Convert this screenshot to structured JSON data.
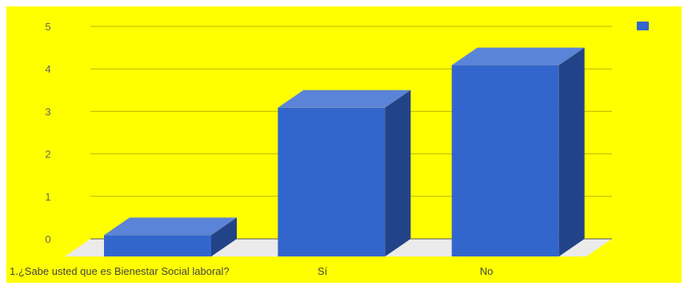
{
  "chart_data": {
    "type": "bar",
    "style": "3d-column",
    "categories": [
      "1.¿Sabe usted que es Bienestar Social laboral?",
      "Sí",
      "No"
    ],
    "series": [
      {
        "values": [
          0.5,
          3.5,
          4.5
        ]
      }
    ],
    "ylim": [
      0,
      5
    ],
    "yticks": [
      "0",
      "1",
      "2",
      "3",
      "4",
      "5"
    ],
    "grid": true,
    "legend": "top-right",
    "colors": {
      "background": "#ffff00",
      "bar_front": "#3366cc",
      "bar_top": "#5b84d8",
      "bar_side": "#234388",
      "floor": "#ebebeb",
      "gridline": "#b8b800",
      "tick_text": "#666666"
    }
  }
}
